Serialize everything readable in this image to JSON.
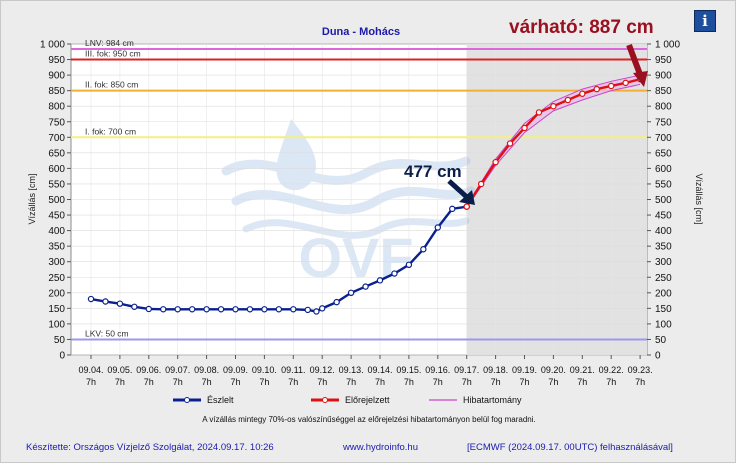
{
  "chart_data": {
    "type": "line",
    "title": "Duna - Mohács",
    "ylabel": "Vízállás [cm]",
    "ylabel_right": "Vízállás [cm]",
    "ylim": [
      0,
      1000
    ],
    "y_ticks": [
      "0",
      "50",
      "100",
      "150",
      "200",
      "250",
      "300",
      "350",
      "400",
      "450",
      "500",
      "550",
      "600",
      "650",
      "700",
      "750",
      "800",
      "850",
      "900",
      "950",
      "1 000"
    ],
    "x_ticks": [
      {
        "date": "09.04.",
        "hour": "7h"
      },
      {
        "date": "09.05.",
        "hour": "7h"
      },
      {
        "date": "09.06.",
        "hour": "7h"
      },
      {
        "date": "09.07.",
        "hour": "7h"
      },
      {
        "date": "09.08.",
        "hour": "7h"
      },
      {
        "date": "09.09.",
        "hour": "7h"
      },
      {
        "date": "09.10.",
        "hour": "7h"
      },
      {
        "date": "09.11.",
        "hour": "7h"
      },
      {
        "date": "09.12.",
        "hour": "7h"
      },
      {
        "date": "09.13.",
        "hour": "7h"
      },
      {
        "date": "09.14.",
        "hour": "7h"
      },
      {
        "date": "09.15.",
        "hour": "7h"
      },
      {
        "date": "09.16.",
        "hour": "7h"
      },
      {
        "date": "09.17.",
        "hour": "7h"
      },
      {
        "date": "09.18.",
        "hour": "7h"
      },
      {
        "date": "09.19.",
        "hour": "7h"
      },
      {
        "date": "09.20.",
        "hour": "7h"
      },
      {
        "date": "09.21.",
        "hour": "7h"
      },
      {
        "date": "09.22.",
        "hour": "7h"
      },
      {
        "date": "09.23.",
        "hour": "7h"
      }
    ],
    "forecast_start_tick": 13,
    "reference_lines": [
      {
        "label": "LNV: 984 cm",
        "value": 984,
        "color": "#dd66dd"
      },
      {
        "label": "III. fok: 950 cm",
        "value": 950,
        "color": "#dd2222"
      },
      {
        "label": "II. fok: 850 cm",
        "value": 850,
        "color": "#f0b030"
      },
      {
        "label": "I. fok: 700 cm",
        "value": 700,
        "color": "#f4f080"
      },
      {
        "label": "LKV: 50 cm",
        "value": 50,
        "color": "#9999ee"
      }
    ],
    "series": [
      {
        "name": "Észlelt",
        "color": "#0a2090",
        "x_tick_index": [
          0,
          0.5,
          1,
          1.5,
          2,
          2.5,
          3,
          3.5,
          4,
          4.5,
          5,
          5.5,
          6,
          6.5,
          7,
          7.5,
          7.8,
          8,
          8.5,
          9,
          9.5,
          10,
          10.5,
          11,
          11.5,
          12,
          12.5,
          13
        ],
        "values": [
          180,
          172,
          165,
          155,
          148,
          147,
          147,
          147,
          147,
          147,
          147,
          147,
          147,
          147,
          147,
          145,
          140,
          150,
          170,
          200,
          220,
          240,
          262,
          290,
          340,
          410,
          470,
          477
        ]
      },
      {
        "name": "Előrejelzett",
        "color": "#dd1111",
        "x_tick_index": [
          13,
          13.5,
          14,
          14.5,
          15,
          15.5,
          16,
          16.5,
          17,
          17.5,
          18,
          18.5,
          19
        ],
        "values": [
          477,
          550,
          620,
          680,
          730,
          780,
          800,
          820,
          840,
          855,
          865,
          875,
          887
        ]
      },
      {
        "name": "Hibatartomány",
        "color": "#cc44cc",
        "x_tick_index": [
          13,
          14,
          15,
          16,
          17,
          18,
          19
        ],
        "upper": [
          480,
          630,
          745,
          815,
          855,
          880,
          900
        ],
        "lower": [
          474,
          610,
          715,
          785,
          820,
          850,
          870
        ]
      }
    ]
  },
  "annotations": {
    "observed": "477 cm",
    "forecast": "várható: 887 cm"
  },
  "logo_text": "OVF",
  "note": "A vízállás mintegy 70%-os valószínűséggel az előrejelzési hibatartományon belül fog maradni.",
  "footer": {
    "author": "Készítette: Országos Vízjelző Szolgálat, 2024.09.17. 10:26",
    "url": "www.hydroinfo.hu",
    "model": "[ECMWF (2024.09.17. 00UTC) felhasználásával]"
  },
  "info_button": "i",
  "info_icon": "info-icon"
}
